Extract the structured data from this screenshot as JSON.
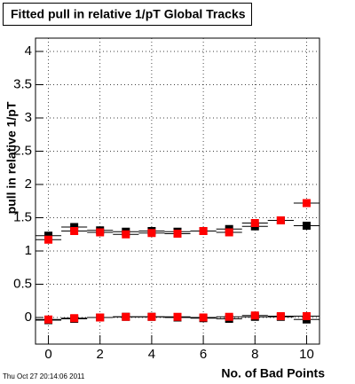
{
  "chart_data": {
    "type": "scatter",
    "title": "Fitted pull in relative 1/pT  Global Tracks",
    "x_label": "No. of Bad Points",
    "y_label": "pull in relative 1/pT",
    "footer": "Thu Oct 27 20:14:06 2011",
    "x": [
      0,
      1,
      2,
      3,
      4,
      5,
      6,
      7,
      8,
      9,
      10
    ],
    "series": [
      {
        "color": "#000000",
        "values": [
          1.23,
          1.36,
          1.31,
          1.29,
          1.3,
          1.29,
          1.3,
          1.33,
          1.37,
          1.46,
          1.38
        ]
      },
      {
        "color": "#ff0000",
        "values": [
          1.17,
          1.3,
          1.28,
          1.25,
          1.27,
          1.26,
          1.3,
          1.28,
          1.42,
          1.46,
          1.72
        ]
      },
      {
        "color": "#000000",
        "values": [
          -0.04,
          -0.02,
          0.0,
          0.01,
          0.01,
          0.0,
          -0.01,
          -0.02,
          0.01,
          0.01,
          -0.03
        ]
      },
      {
        "color": "#ff0000",
        "values": [
          -0.03,
          -0.01,
          0.0,
          0.01,
          0.01,
          0.01,
          0.0,
          0.01,
          0.03,
          0.02,
          0.02
        ]
      }
    ],
    "xlim": [
      -0.5,
      10.5
    ],
    "ylim": [
      -0.4,
      4.2
    ],
    "xticks": [
      0,
      2,
      4,
      6,
      8,
      10
    ],
    "yticks": [
      0,
      0.5,
      1,
      1.5,
      2,
      2.5,
      3,
      3.5,
      4
    ],
    "grid": true
  }
}
